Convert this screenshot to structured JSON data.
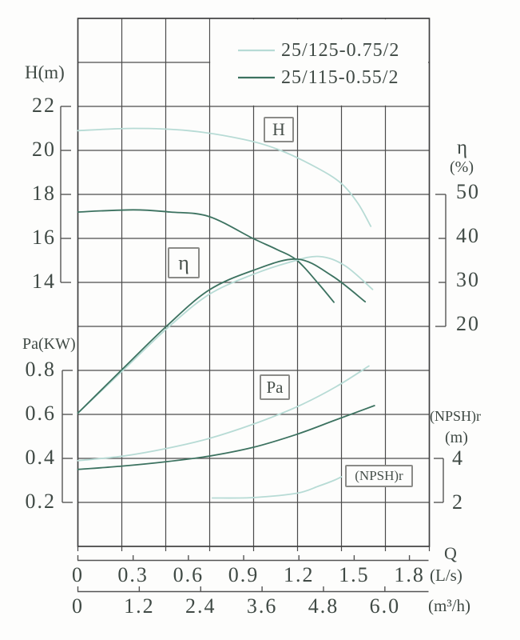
{
  "chart_data": {
    "type": "line",
    "title": "",
    "description": "Pump performance curves: head H, efficiency eta, power Pa and (NPSH)r versus flow Q",
    "legend": {
      "position": "top-right",
      "entries": [
        {
          "name": "25/125-0.75/2",
          "color": "#b7dbd5"
        },
        {
          "name": "25/115-0.55/2",
          "color": "#3c7260"
        }
      ]
    },
    "axes": {
      "h": {
        "title": "H(m)",
        "ticks": [
          "22",
          "20",
          "18",
          "16",
          "14"
        ],
        "values": [
          22,
          20,
          18,
          16,
          14
        ]
      },
      "pa": {
        "title": "Pa(KW)",
        "ticks": [
          "0.8",
          "0.6",
          "0.4",
          "0.2"
        ],
        "values": [
          0.8,
          0.6,
          0.4,
          0.2
        ]
      },
      "eta": {
        "title": "η",
        "unit": "(%)",
        "ticks": [
          "50",
          "40",
          "30",
          "20"
        ],
        "values": [
          50,
          40,
          30,
          20
        ]
      },
      "npshr": {
        "title": "(NPSH)r",
        "unit": "(m)",
        "ticks": [
          "4",
          "2"
        ],
        "values": [
          4,
          2
        ]
      },
      "q_ls": {
        "title": "Q",
        "unit": "(L/s)",
        "ticks": [
          "0",
          "0.3",
          "0.6",
          "0.9",
          "1.2",
          "1.5",
          "1.8"
        ],
        "values": [
          0,
          0.3,
          0.6,
          0.9,
          1.2,
          1.5,
          1.8
        ]
      },
      "q_m3h": {
        "unit": "(m³/h)",
        "ticks": [
          "0",
          "1.2",
          "2.4",
          "3.6",
          "4.8",
          "6.0"
        ],
        "values": [
          0,
          1.2,
          2.4,
          3.6,
          4.8,
          6.0
        ]
      }
    },
    "annotations": {
      "h_box": "H",
      "eta_box": "η",
      "pa_box": "Pa",
      "npshr_box": "(NPSH)r"
    },
    "series": [
      {
        "model": "25/125-0.75/2",
        "quantity": "H",
        "unit": "m",
        "color_key": 0,
        "points": [
          [
            0,
            20.9
          ],
          [
            0.3,
            21.0
          ],
          [
            0.6,
            20.9
          ],
          [
            0.9,
            20.5
          ],
          [
            1.1,
            20.0
          ],
          [
            1.3,
            19.2
          ],
          [
            1.43,
            18.5
          ],
          [
            1.52,
            17.6
          ],
          [
            1.59,
            16.55
          ]
        ]
      },
      {
        "model": "25/115-0.55/2",
        "quantity": "H",
        "unit": "m",
        "color_key": 1,
        "points": [
          [
            0,
            17.2
          ],
          [
            0.3,
            17.3
          ],
          [
            0.5,
            17.2
          ],
          [
            0.71,
            17.0
          ],
          [
            0.95,
            16.0
          ],
          [
            1.08,
            15.5
          ],
          [
            1.19,
            15.0
          ],
          [
            1.3,
            14.0
          ],
          [
            1.39,
            13.1
          ]
        ]
      },
      {
        "model": "25/125-0.75/2",
        "quantity": "eta",
        "unit": "%",
        "color_key": 0,
        "points": [
          [
            0,
            0.3
          ],
          [
            0.24,
            9.8
          ],
          [
            0.48,
            19.4
          ],
          [
            0.71,
            27.2
          ],
          [
            0.95,
            31.8
          ],
          [
            1.15,
            34.6
          ],
          [
            1.31,
            35.9
          ],
          [
            1.45,
            33.8
          ],
          [
            1.6,
            28.4
          ]
        ]
      },
      {
        "model": "25/115-0.55/2",
        "quantity": "eta",
        "unit": "%",
        "color_key": 1,
        "points": [
          [
            0,
            0.3
          ],
          [
            0.24,
            10.2
          ],
          [
            0.48,
            20.0
          ],
          [
            0.71,
            28.2
          ],
          [
            0.95,
            32.7
          ],
          [
            1.19,
            35.3
          ],
          [
            1.38,
            31.5
          ],
          [
            1.56,
            25.6
          ]
        ]
      },
      {
        "model": "25/125-0.75/2",
        "quantity": "Pa",
        "unit": "KW",
        "color_key": 0,
        "points": [
          [
            0,
            0.39
          ],
          [
            0.24,
            0.41
          ],
          [
            0.48,
            0.445
          ],
          [
            0.71,
            0.49
          ],
          [
            0.95,
            0.555
          ],
          [
            1.19,
            0.635
          ],
          [
            1.4,
            0.725
          ],
          [
            1.58,
            0.82
          ]
        ]
      },
      {
        "model": "25/115-0.55/2",
        "quantity": "Pa",
        "unit": "KW",
        "color_key": 1,
        "points": [
          [
            0,
            0.35
          ],
          [
            0.24,
            0.365
          ],
          [
            0.48,
            0.385
          ],
          [
            0.71,
            0.41
          ],
          [
            0.95,
            0.45
          ],
          [
            1.19,
            0.51
          ],
          [
            1.4,
            0.575
          ],
          [
            1.61,
            0.64
          ]
        ]
      },
      {
        "model": "25/125-0.75/2",
        "quantity": "NPSHr",
        "unit": "m",
        "color_key": 0,
        "points": [
          [
            0.73,
            2.2
          ],
          [
            0.95,
            2.22
          ],
          [
            1.19,
            2.42
          ],
          [
            1.31,
            2.75
          ],
          [
            1.39,
            3.0
          ],
          [
            1.43,
            3.16
          ]
        ]
      }
    ]
  },
  "colors": {
    "background": "#fdfdfc",
    "grid": "#4b4b4b",
    "border": "#3f3f3f",
    "text": "#404a45",
    "bracket": "#555555",
    "series_light": "#b7dbd5",
    "series_dark": "#3c7260"
  }
}
